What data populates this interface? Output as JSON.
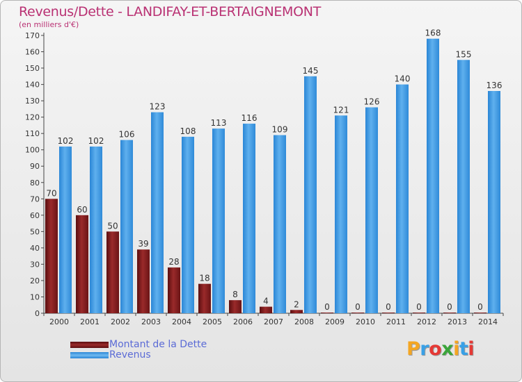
{
  "title": "Revenus/Dette - LANDIFAY-ET-BERTAIGNEMONT",
  "subtitle": "(en milliers d'€)",
  "logo": {
    "text": "Proxiti",
    "letters": [
      "P",
      "r",
      "o",
      "x",
      "i",
      "t",
      "i"
    ],
    "colors": [
      "#f4a623",
      "#39a0e6",
      "#e53935",
      "#3aa53a",
      "#f4a623",
      "#39a0e6",
      "#e53935"
    ]
  },
  "colors": {
    "dette": "#8b1c1c",
    "revenus": "#3b96e0",
    "title": "#b93173",
    "legend_text": "#5b6bd6"
  },
  "legend": [
    {
      "label": "Montant de la Dette"
    },
    {
      "label": "Revenus"
    }
  ],
  "chart_data": {
    "type": "bar",
    "categories": [
      "2000",
      "2001",
      "2002",
      "2003",
      "2004",
      "2005",
      "2006",
      "2007",
      "2008",
      "2009",
      "2010",
      "2011",
      "2012",
      "2013",
      "2014"
    ],
    "series": [
      {
        "name": "Montant de la Dette",
        "values": [
          70,
          60,
          50,
          39,
          28,
          18,
          8,
          4,
          2,
          0,
          0,
          0,
          0,
          0,
          0
        ]
      },
      {
        "name": "Revenus",
        "values": [
          102,
          102,
          106,
          123,
          108,
          113,
          116,
          109,
          145,
          121,
          126,
          140,
          168,
          155,
          136
        ]
      }
    ],
    "ylim": [
      0,
      170
    ],
    "yticks": [
      0,
      10,
      20,
      30,
      40,
      50,
      60,
      70,
      80,
      90,
      100,
      110,
      120,
      130,
      140,
      150,
      160,
      170
    ],
    "grid": false,
    "legend_position": "bottom-left"
  }
}
